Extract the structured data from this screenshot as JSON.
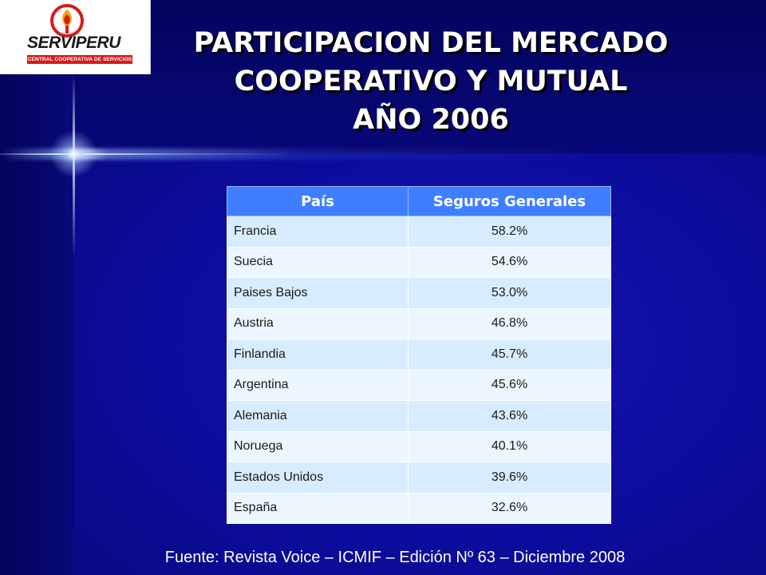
{
  "logo": {
    "name": "SERVIPERU",
    "tagline": "CENTRAL COOPERATIVA DE SERVICIOS"
  },
  "title": {
    "line1": "PARTICIPACION DEL MERCADO",
    "line2": "COOPERATIVO Y MUTUAL",
    "line3": "AÑO 2006"
  },
  "table": {
    "headers": [
      "País",
      "Seguros  Generales"
    ],
    "rows": [
      {
        "country": "Francia",
        "value": "58.2%"
      },
      {
        "country": "Suecia",
        "value": "54.6%"
      },
      {
        "country": "Paises Bajos",
        "value": "53.0%"
      },
      {
        "country": "Austria",
        "value": "46.8%"
      },
      {
        "country": "Finlandia",
        "value": "45.7%"
      },
      {
        "country": "Argentina",
        "value": "45.6%"
      },
      {
        "country": "Alemania",
        "value": "43.6%"
      },
      {
        "country": "Noruega",
        "value": "40.1%"
      },
      {
        "country": "Estados Unidos",
        "value": "39.6%"
      },
      {
        "country": "España",
        "value": "32.6%"
      }
    ]
  },
  "source": "Fuente: Revista Voice – ICMIF – Edición Nº 63 – Diciembre 2008",
  "colors": {
    "background": "#0c0c9a",
    "header": "#3f7fff",
    "row_odd": "#d8ecff",
    "row_even": "#ecf6ff",
    "logo_red": "#d61a1a"
  }
}
